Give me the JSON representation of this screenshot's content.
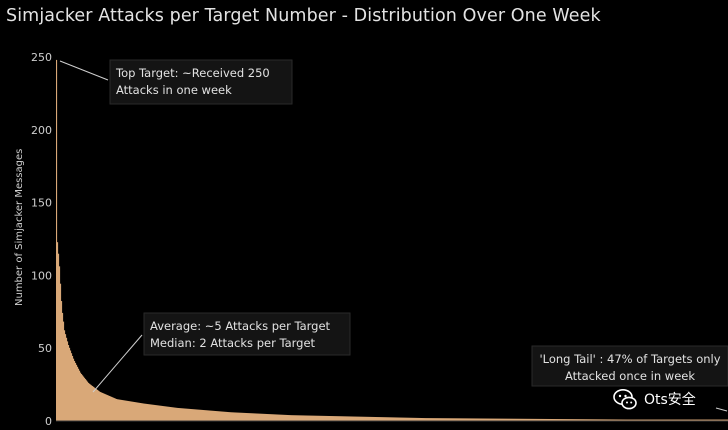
{
  "title": "Simjacker Attacks per Target Number - Distribution Over One Week",
  "annotations": {
    "top": [
      "Top Target: ~Received 250",
      "Attacks in one week"
    ],
    "avg": [
      "Average: ~5 Attacks per Target",
      "Median: 2 Attacks per Target"
    ],
    "tail": [
      "'Long Tail' : 47% of Targets only",
      "Attacked once in week"
    ]
  },
  "watermark": {
    "text": "Ots安全",
    "icon": "wechat-icon"
  },
  "chart_data": {
    "type": "bar",
    "title": "Simjacker Attacks per Target Number - Distribution Over One Week",
    "xlabel": "",
    "ylabel": "Number of Simjacker Messages",
    "ylim": [
      0,
      250
    ],
    "yticks": [
      0,
      50,
      100,
      150,
      200,
      250
    ],
    "grid": false,
    "bar_color": "#d9a878",
    "distribution_points": [
      {
        "rank_fraction": 0.0,
        "value": 248
      },
      {
        "rank_fraction": 0.0015,
        "value": 122
      },
      {
        "rank_fraction": 0.004,
        "value": 110
      },
      {
        "rank_fraction": 0.008,
        "value": 78
      },
      {
        "rank_fraction": 0.012,
        "value": 62
      },
      {
        "rank_fraction": 0.018,
        "value": 52
      },
      {
        "rank_fraction": 0.026,
        "value": 42
      },
      {
        "rank_fraction": 0.036,
        "value": 33
      },
      {
        "rank_fraction": 0.048,
        "value": 26
      },
      {
        "rank_fraction": 0.065,
        "value": 20
      },
      {
        "rank_fraction": 0.09,
        "value": 15
      },
      {
        "rank_fraction": 0.13,
        "value": 12
      },
      {
        "rank_fraction": 0.18,
        "value": 9
      },
      {
        "rank_fraction": 0.26,
        "value": 6
      },
      {
        "rank_fraction": 0.35,
        "value": 4
      },
      {
        "rank_fraction": 0.45,
        "value": 3
      },
      {
        "rank_fraction": 0.55,
        "value": 2
      },
      {
        "rank_fraction": 0.7,
        "value": 1.5
      },
      {
        "rank_fraction": 0.85,
        "value": 1
      },
      {
        "rank_fraction": 1.0,
        "value": 1
      }
    ]
  }
}
